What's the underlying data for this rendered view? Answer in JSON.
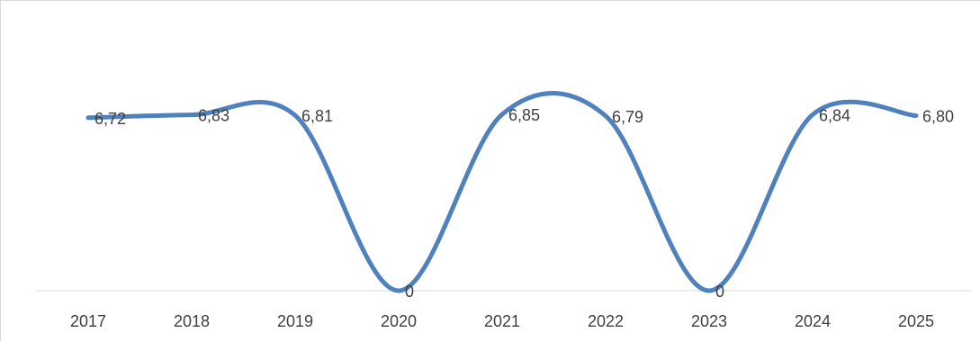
{
  "chart_data": {
    "type": "line",
    "title": "",
    "xlabel": "",
    "ylabel": "",
    "categories": [
      "2017",
      "2018",
      "2019",
      "2020",
      "2021",
      "2022",
      "2023",
      "2024",
      "2025"
    ],
    "series": [
      {
        "values": [
          6.72,
          6.83,
          6.81,
          0,
          6.85,
          6.79,
          0,
          6.84,
          6.8
        ],
        "labels": [
          "6,72",
          "6,83",
          "6,81",
          "0",
          "6,85",
          "6,79",
          "0",
          "6,84",
          "6,80"
        ],
        "color": "#4f81bd",
        "smooth": true
      }
    ],
    "ylim": [
      0,
      8
    ],
    "grid": false,
    "legend": "none",
    "axis_color": "#d9d9d9",
    "label_color": "#404040"
  }
}
